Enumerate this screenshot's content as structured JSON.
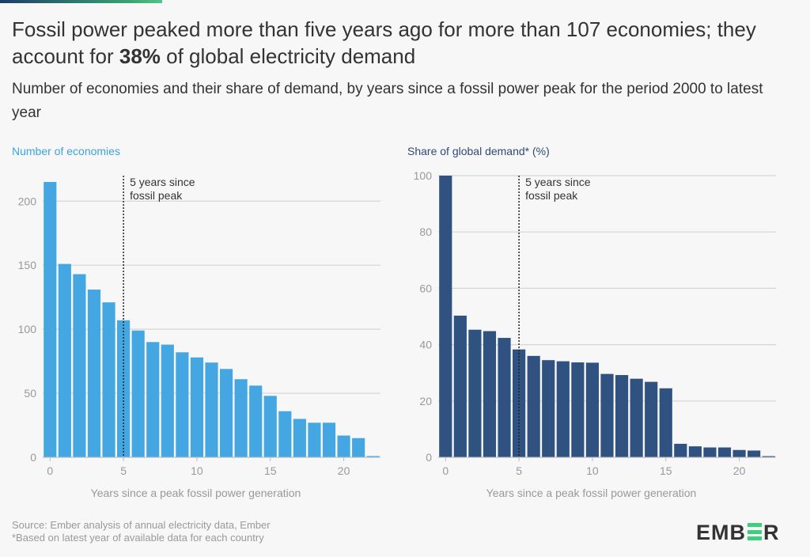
{
  "header": {
    "title_part1": "Fossil power peaked more than five years ago for more than 107 economies; they account for ",
    "title_bold": "38%",
    "title_part2": " of global electricity demand",
    "subtitle": "Number of economies and their share of demand, by years since a fossil power peak for the period 2000 to latest year"
  },
  "footer": {
    "source": "Source: Ember analysis of annual electricity data, Ember",
    "note": "*Based on latest year of available data for each country",
    "logo": "EMBER"
  },
  "colors": {
    "left_bars": "#45a7e2",
    "right_bars": "#2f5281",
    "accent_green": "#3ecf7e"
  },
  "chart_data": [
    {
      "type": "bar",
      "title": "Number of economies",
      "xlabel": "Years since a peak fossil power generation",
      "ylabel": "",
      "x": [
        0,
        1,
        2,
        3,
        4,
        5,
        6,
        7,
        8,
        9,
        10,
        11,
        12,
        13,
        14,
        15,
        16,
        17,
        18,
        19,
        20,
        21,
        22
      ],
      "values": [
        215,
        151,
        143,
        131,
        121,
        107,
        99,
        90,
        88,
        82,
        78,
        74,
        69,
        61,
        56,
        48,
        36,
        30,
        27,
        27,
        17,
        15,
        1
      ],
      "ylim": [
        0,
        215
      ],
      "yticks": [
        0,
        50,
        100,
        150,
        200
      ],
      "xticks": [
        0,
        5,
        10,
        15,
        20
      ],
      "grid": true,
      "annotation": {
        "x": 5,
        "lines": [
          "5 years since",
          "fossil peak"
        ]
      }
    },
    {
      "type": "bar",
      "title": "Share of global demand* (%)",
      "xlabel": "Years since a peak fossil power generation",
      "ylabel": "",
      "x": [
        0,
        1,
        2,
        3,
        4,
        5,
        6,
        7,
        8,
        9,
        10,
        11,
        12,
        13,
        14,
        15,
        16,
        17,
        18,
        19,
        20,
        21,
        22
      ],
      "values": [
        100,
        50.3,
        45.3,
        44.8,
        42.4,
        38.3,
        36,
        34.5,
        34.1,
        33.7,
        33.6,
        29.6,
        29.2,
        27.9,
        26.8,
        24.5,
        4.8,
        3.9,
        3.5,
        3.5,
        2.6,
        2.4,
        0
      ],
      "ylim": [
        0,
        100
      ],
      "yticks": [
        0,
        20,
        40,
        60,
        80,
        100
      ],
      "xticks": [
        0,
        5,
        10,
        15,
        20
      ],
      "grid": true,
      "annotation": {
        "x": 5,
        "lines": [
          "5 years since",
          "fossil peak"
        ]
      }
    }
  ]
}
